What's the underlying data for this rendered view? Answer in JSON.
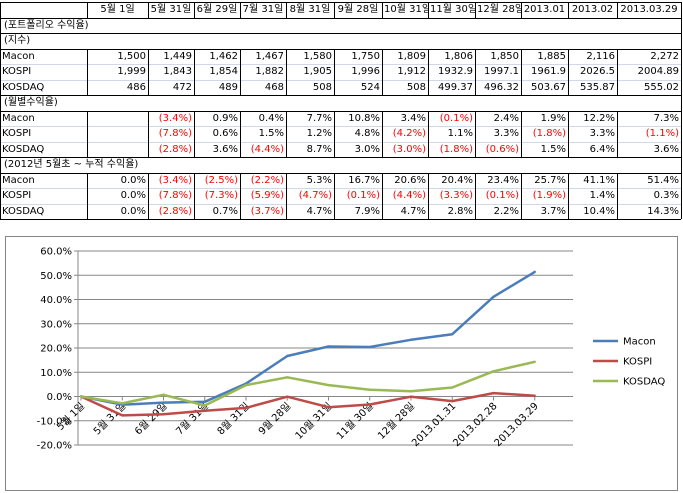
{
  "table": {
    "header": [
      "",
      "5월 1일",
      "5월 31일",
      "6월 29일",
      "7월 31일",
      "8월 31일",
      "9월 28일",
      "10월 31일",
      "11월 30일",
      "12월 28일",
      "2013.01",
      "2013.02",
      "2013.03.29"
    ],
    "sections": [
      {
        "title": "(포트폴리오 수익율)",
        "rows": []
      },
      {
        "title": "(지수)",
        "rows": [
          {
            "label": "Macon",
            "values": [
              "1,500",
              "1,449",
              "1,462",
              "1,467",
              "1,580",
              "1,750",
              "1,809",
              "1,806",
              "1,850",
              "1,885",
              "2,116",
              "2,272"
            ]
          },
          {
            "label": "KOSPI",
            "values": [
              "1,999",
              "1,843",
              "1,854",
              "1,882",
              "1,905",
              "1,996",
              "1,912",
              "1932.9",
              "1997.1",
              "1961.9",
              "2026.5",
              "2004.89"
            ]
          },
          {
            "label": "KOSDAQ",
            "values": [
              "486",
              "472",
              "489",
              "468",
              "508",
              "524",
              "508",
              "499.37",
              "496.32",
              "503.67",
              "535.87",
              "555.02"
            ]
          }
        ]
      },
      {
        "title": "(월별수익율)",
        "rows": [
          {
            "label": "Macon",
            "values": [
              "",
              "(3.4%)",
              "0.9%",
              "0.4%",
              "7.7%",
              "10.8%",
              "3.4%",
              "(0.1%)",
              "2.4%",
              "1.9%",
              "12.2%",
              "7.3%"
            ]
          },
          {
            "label": "KOSPI",
            "values": [
              "",
              "(7.8%)",
              "0.6%",
              "1.5%",
              "1.2%",
              "4.8%",
              "(4.2%)",
              "1.1%",
              "3.3%",
              "(1.8%)",
              "3.3%",
              "(1.1%)"
            ]
          },
          {
            "label": "KOSDAQ",
            "values": [
              "",
              "(2.8%)",
              "3.6%",
              "(4.4%)",
              "8.7%",
              "3.0%",
              "(3.0%)",
              "(1.8%)",
              "(0.6%)",
              "1.5%",
              "6.4%",
              "3.6%"
            ]
          }
        ]
      },
      {
        "title": "(2012년 5월초 ~ 누적 수익율)",
        "rows": [
          {
            "label": "Macon",
            "values": [
              "0.0%",
              "(3.4%)",
              "(2.5%)",
              "(2.2%)",
              "5.3%",
              "16.7%",
              "20.6%",
              "20.4%",
              "23.4%",
              "25.7%",
              "41.1%",
              "51.4%"
            ]
          },
          {
            "label": "KOSPI",
            "values": [
              "0.0%",
              "(7.8%)",
              "(7.3%)",
              "(5.9%)",
              "(4.7%)",
              "(0.1%)",
              "(4.4%)",
              "(3.3%)",
              "(0.1%)",
              "(1.9%)",
              "1.4%",
              "0.3%"
            ]
          },
          {
            "label": "KOSDAQ",
            "values": [
              "0.0%",
              "(2.8%)",
              "0.7%",
              "(3.7%)",
              "4.7%",
              "7.9%",
              "4.7%",
              "2.8%",
              "2.2%",
              "3.7%",
              "10.4%",
              "14.3%"
            ]
          }
        ]
      }
    ]
  },
  "chart_data": {
    "type": "line",
    "categories": [
      "5월 1일",
      "5월 31일",
      "6월 29일",
      "7월 31일",
      "8월 31일",
      "9월 28일",
      "10월 31일",
      "11월 30일",
      "12월 28일",
      "2013.01.31",
      "2013.02.28",
      "2013.03.29"
    ],
    "series": [
      {
        "name": "Macon",
        "color": "#4a7ebb",
        "values": [
          0.0,
          -3.4,
          -2.5,
          -2.2,
          5.3,
          16.7,
          20.6,
          20.4,
          23.4,
          25.7,
          41.1,
          51.4
        ]
      },
      {
        "name": "KOSPI",
        "color": "#be4b48",
        "values": [
          0.0,
          -7.8,
          -7.3,
          -5.9,
          -4.7,
          -0.1,
          -4.4,
          -3.3,
          -0.1,
          -1.9,
          1.4,
          0.3
        ]
      },
      {
        "name": "KOSDAQ",
        "color": "#98b954",
        "values": [
          0.0,
          -2.8,
          0.7,
          -3.7,
          4.7,
          7.9,
          4.7,
          2.8,
          2.2,
          3.7,
          10.4,
          14.3
        ]
      }
    ],
    "ylim": [
      -20,
      60
    ],
    "yticks": [
      "-20.0%",
      "-10.0%",
      "0.0%",
      "10.0%",
      "20.0%",
      "30.0%",
      "40.0%",
      "50.0%",
      "60.0%"
    ],
    "grid": true,
    "legend": "right"
  }
}
